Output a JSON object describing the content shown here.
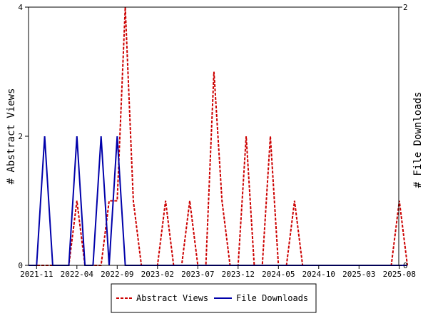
{
  "chart_data": {
    "type": "line",
    "x_tick_labels": [
      "2021-11",
      "2022-04",
      "2022-09",
      "2023-02",
      "2023-07",
      "2023-12",
      "2024-05",
      "2024-10",
      "2025-03",
      "2025-08"
    ],
    "ylabel_left": "# Abstract Views",
    "ylabel_right": "# File Downloads",
    "ylim_left": [
      0,
      4
    ],
    "ylim_right": [
      0,
      2
    ],
    "y_ticks_left": [
      "0",
      "2",
      "4"
    ],
    "y_ticks_right": [
      "0",
      "2"
    ],
    "grid": false,
    "legend_position": "bottom-center",
    "series": [
      {
        "name": "Abstract Views",
        "axis": "left",
        "color": "#cc0000",
        "style": "dashed",
        "x": [
          "2021-10",
          "2021-11",
          "2021-12",
          "2022-01",
          "2022-02",
          "2022-03",
          "2022-04",
          "2022-05",
          "2022-06",
          "2022-07",
          "2022-08",
          "2022-09",
          "2022-10",
          "2022-11",
          "2022-12",
          "2023-01",
          "2023-02",
          "2023-03",
          "2023-04",
          "2023-05",
          "2023-06",
          "2023-07",
          "2023-08",
          "2023-09",
          "2023-10",
          "2023-11",
          "2023-12",
          "2024-01",
          "2024-02",
          "2024-03",
          "2024-04",
          "2024-05",
          "2024-06",
          "2024-07",
          "2024-08",
          "2024-09",
          "2024-10",
          "2024-11",
          "2024-12",
          "2025-01",
          "2025-02",
          "2025-03",
          "2025-04",
          "2025-05",
          "2025-06",
          "2025-07",
          "2025-08",
          "2025-09"
        ],
        "values": [
          0,
          0,
          0,
          0,
          0,
          0,
          1,
          0,
          0,
          0,
          1,
          1,
          4,
          1,
          0,
          0,
          0,
          1,
          0,
          0,
          1,
          0,
          0,
          3,
          1,
          0,
          0,
          2,
          0,
          0,
          2,
          0,
          0,
          1,
          0,
          0,
          0,
          0,
          0,
          0,
          0,
          0,
          0,
          0,
          0,
          0,
          1,
          0
        ]
      },
      {
        "name": "File Downloads",
        "axis": "right",
        "color": "#0000aa",
        "style": "solid",
        "x": [
          "2021-10",
          "2021-11",
          "2021-12",
          "2022-01",
          "2022-02",
          "2022-03",
          "2022-04",
          "2022-05",
          "2022-06",
          "2022-07",
          "2022-08",
          "2022-09",
          "2022-10",
          "2022-11",
          "2022-12",
          "2023-01",
          "2023-02",
          "2023-03",
          "2023-04",
          "2023-05",
          "2023-06",
          "2023-07",
          "2023-08",
          "2023-09",
          "2023-10",
          "2023-11",
          "2023-12",
          "2024-01",
          "2024-02",
          "2024-03",
          "2024-04",
          "2024-05",
          "2024-06",
          "2024-07",
          "2024-08",
          "2024-09",
          "2024-10",
          "2024-11",
          "2024-12",
          "2025-01",
          "2025-02",
          "2025-03",
          "2025-04",
          "2025-05",
          "2025-06",
          "2025-07",
          "2025-08",
          "2025-09"
        ],
        "values": [
          0,
          0,
          1,
          0,
          0,
          0,
          1,
          0,
          0,
          1,
          0,
          1,
          0,
          0,
          0,
          0,
          0,
          0,
          0,
          0,
          0,
          0,
          0,
          0,
          0,
          0,
          0,
          0,
          0,
          0,
          0,
          0,
          0,
          0,
          0,
          0,
          0,
          0,
          0,
          0,
          0,
          0,
          0,
          0,
          0,
          0,
          0,
          0
        ]
      }
    ]
  }
}
